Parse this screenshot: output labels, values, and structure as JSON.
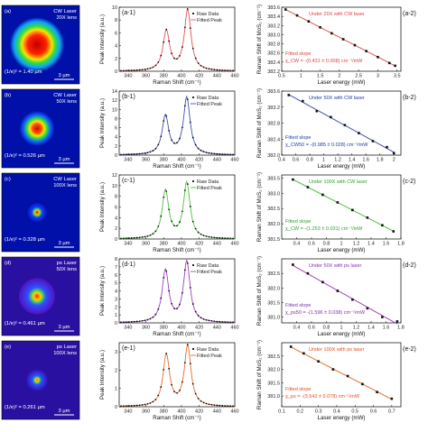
{
  "figure": {
    "rows": [
      {
        "image": {
          "label": "(a)",
          "laser_line1": "CW Laser",
          "laser_line2": "20X lens",
          "diameter_text": "(1/e)² = 1.40 µm",
          "scalebar": "3 µm",
          "spot": "large",
          "palette": "jet"
        },
        "spectrum": {
          "label": "(a-1)",
          "type": "line",
          "xlabel": "Raman Shift (cm⁻¹)",
          "ylabel": "Peak Intensity (a.u.)",
          "xlim": [
            330,
            460
          ],
          "ylim": [
            0,
            10
          ],
          "xticks": [
            340,
            360,
            380,
            400,
            420,
            440,
            460
          ],
          "yticks": [
            0,
            2,
            4,
            6,
            8,
            10
          ],
          "legend": [
            "Raw Data",
            "Fitted Peak"
          ],
          "fit_color": "#e05555",
          "peaks": [
            {
              "center": 383,
              "height": 6.2,
              "width": 4.5
            },
            {
              "center": 407,
              "height": 9.5,
              "width": 4.5
            }
          ]
        },
        "shift": {
          "label": "(a-2)",
          "type": "scatter",
          "annotation": "Under 20X with CW laser",
          "fit_title": "Fitted slope",
          "fit_value": "χ_CW = -(0.431 ± 0.008) cm⁻¹/mW",
          "xlabel": "",
          "ylabel": "",
          "xlim": [
            0.5,
            3.6
          ],
          "ylim": [
            382.2,
            383.6
          ],
          "xticks": [
            0.5,
            1.0,
            1.5,
            2.0,
            2.5,
            3.0,
            3.5
          ],
          "yticks": [
            382.2,
            382.4,
            382.6,
            382.8,
            383.0,
            383.2,
            383.4,
            383.6
          ],
          "line_color": "#e05555",
          "text_color": "#e04040",
          "points_x": [
            0.6,
            0.9,
            1.2,
            1.5,
            1.8,
            2.1,
            2.4,
            2.7,
            3.0,
            3.3,
            3.45
          ],
          "points_y": [
            383.55,
            383.42,
            383.29,
            383.16,
            383.03,
            382.9,
            382.77,
            382.64,
            382.51,
            382.38,
            382.32
          ]
        }
      },
      {
        "image": {
          "label": "(b)",
          "laser_line1": "CW Laser",
          "laser_line2": "50X lens",
          "diameter_text": "(1/e)² = 0.526 µm",
          "scalebar": "3 µm",
          "spot": "medium",
          "palette": "jet"
        },
        "spectrum": {
          "label": "(b-1)",
          "type": "line",
          "xlabel": "",
          "ylabel": "Peak Intensity (a.u.)",
          "xlim": [
            330,
            460
          ],
          "ylim": [
            0,
            14
          ],
          "xticks": [
            340,
            360,
            380,
            400,
            420,
            440,
            460
          ],
          "yticks": [
            0,
            2,
            4,
            6,
            8,
            10,
            12,
            14
          ],
          "legend": [
            "Raw Data",
            "Fitted Peak"
          ],
          "fit_color": "#4050b0",
          "peaks": [
            {
              "center": 382,
              "height": 8.5,
              "width": 4.5
            },
            {
              "center": 406,
              "height": 12.5,
              "width": 4.5
            }
          ]
        },
        "shift": {
          "label": "(b-2)",
          "type": "scatter",
          "annotation": "Under 50X with CW laser",
          "fit_title": "Fitted slope",
          "fit_value": "χ_CW50 = -(0.985 ± 0.028) cm⁻¹/mW",
          "xlabel": "",
          "ylabel": "",
          "xlim": [
            0.4,
            2.1
          ],
          "ylim": [
            382.0,
            383.6
          ],
          "xticks": [
            0.4,
            0.6,
            0.8,
            1.0,
            1.2,
            1.4,
            1.6,
            1.8,
            2.0
          ],
          "yticks": [
            382.0,
            382.4,
            382.8,
            383.2,
            383.6
          ],
          "line_color": "#4050b0",
          "text_color": "#2040a0",
          "points_x": [
            0.5,
            0.7,
            0.9,
            1.1,
            1.3,
            1.5,
            1.7,
            1.9,
            2.0
          ],
          "points_y": [
            383.5,
            383.35,
            383.1,
            382.95,
            382.75,
            382.55,
            382.35,
            382.2,
            382.05
          ]
        }
      },
      {
        "image": {
          "label": "(c)",
          "laser_line1": "CW Laser",
          "laser_line2": "100X lens",
          "diameter_text": "(1/e)² = 0.328 µm",
          "scalebar": "3 µm",
          "spot": "small",
          "palette": "jet"
        },
        "spectrum": {
          "label": "(c-1)",
          "type": "line",
          "xlabel": "",
          "ylabel": "Peak Intensity (a.u.)",
          "xlim": [
            330,
            460
          ],
          "ylim": [
            0,
            12
          ],
          "xticks": [
            340,
            360,
            380,
            400,
            420,
            440,
            460
          ],
          "yticks": [
            0,
            2,
            4,
            6,
            8,
            10,
            12
          ],
          "legend": [
            "Raw Data",
            "Fitted Peak"
          ],
          "fit_color": "#50c040",
          "peaks": [
            {
              "center": 382,
              "height": 9,
              "width": 4.5
            },
            {
              "center": 406,
              "height": 10.5,
              "width": 4.5
            }
          ]
        },
        "shift": {
          "label": "(c-2)",
          "type": "scatter",
          "annotation": "Under 100X with CW laser",
          "fit_title": "Fitted slope",
          "fit_value": "χ_CW = -(1.253 ± 0.031) cm⁻¹/mW",
          "xlabel": "",
          "ylabel": "",
          "xlim": [
            0.2,
            1.8
          ],
          "ylim": [
            381.5,
            383.6
          ],
          "xticks": [
            0.4,
            0.6,
            0.8,
            1.0,
            1.2,
            1.4,
            1.6,
            1.8
          ],
          "yticks": [
            381.5,
            382.0,
            382.5,
            383.0,
            383.5
          ],
          "line_color": "#50c040",
          "text_color": "#30a030",
          "points_x": [
            0.35,
            0.55,
            0.75,
            0.95,
            1.15,
            1.35,
            1.55,
            1.7
          ],
          "points_y": [
            383.45,
            383.2,
            382.95,
            382.7,
            382.45,
            382.2,
            381.95,
            381.75
          ]
        }
      },
      {
        "image": {
          "label": "(d)",
          "laser_line1": "ps Laser",
          "laser_line2": "50X lens",
          "diameter_text": "(1/e)² = 0.461 µm",
          "scalebar": "3 µm",
          "spot": "medium",
          "palette": "purple"
        },
        "spectrum": {
          "label": "(d-1)",
          "type": "line",
          "xlabel": "",
          "ylabel": "Peak Intensity (a.u.)",
          "xlim": [
            330,
            460
          ],
          "ylim": [
            0,
            8
          ],
          "xticks": [
            340,
            360,
            380,
            400,
            420,
            440,
            460
          ],
          "yticks": [
            0,
            1,
            2,
            3,
            4,
            5,
            6,
            7,
            8
          ],
          "legend": [
            "Raw Data",
            "Fitted Peak"
          ],
          "fit_color": "#a040c0",
          "peaks": [
            {
              "center": 382,
              "height": 6.5,
              "width": 4.5
            },
            {
              "center": 406,
              "height": 7.6,
              "width": 4.5
            }
          ]
        },
        "shift": {
          "label": "(d-2)",
          "type": "scatter",
          "annotation": "Under 50X with ps laser",
          "fit_title": "Fitted slope",
          "fit_value": "χ_ps50 = -(1.596 ± 0.038) cm⁻¹/mW",
          "xlabel": "",
          "ylabel": "",
          "xlim": [
            0.2,
            1.8
          ],
          "ylim": [
            380.8,
            383.0
          ],
          "xticks": [
            0.4,
            0.6,
            0.8,
            1.0,
            1.2,
            1.4,
            1.6,
            1.8
          ],
          "yticks": [
            381.0,
            381.5,
            382.0,
            382.5
          ],
          "line_color": "#a040c0",
          "text_color": "#8030b0",
          "points_x": [
            0.35,
            0.55,
            0.75,
            0.95,
            1.15,
            1.35,
            1.55,
            1.75
          ],
          "points_y": [
            382.8,
            382.5,
            382.2,
            381.9,
            381.6,
            381.3,
            381.0,
            380.85
          ]
        }
      },
      {
        "image": {
          "label": "(e)",
          "laser_line1": "ps Laser",
          "laser_line2": "100X lens",
          "diameter_text": "(1/e)² = 0.261 µm",
          "scalebar": "3 µm",
          "spot": "small",
          "palette": "purple"
        },
        "spectrum": {
          "label": "(e-1)",
          "type": "line",
          "xlabel": "Raman Shift (cm⁻¹)",
          "ylabel": "Peak Intensity (a.u.)",
          "xlim": [
            330,
            460
          ],
          "ylim": [
            0,
            3.5
          ],
          "xticks": [
            340,
            360,
            380,
            400,
            420,
            440,
            460
          ],
          "yticks": [
            0,
            1,
            2,
            3
          ],
          "legend": [
            "Raw Data",
            "Fitted Peak"
          ],
          "fit_color": "#e07030",
          "peaks": [
            {
              "center": 383,
              "height": 2.8,
              "width": 4.5
            },
            {
              "center": 407,
              "height": 3.3,
              "width": 4.5
            }
          ]
        },
        "shift": {
          "label": "(e-2)",
          "type": "scatter",
          "annotation": "Under 100X with ps laser",
          "fit_title": "Fitted slope",
          "fit_value": "χ_ps = -(3.542 ± 0.078) cm⁻¹/mW",
          "xlabel": "Laser energy (mW)",
          "ylabel": "",
          "xlim": [
            0.1,
            0.75
          ],
          "ylim": [
            380.6,
            383.0
          ],
          "xticks": [
            0.1,
            0.2,
            0.3,
            0.4,
            0.5,
            0.6,
            0.7
          ],
          "yticks": [
            381.0,
            381.5,
            382.0,
            382.5
          ],
          "line_color": "#e07030",
          "text_color": "#e05020",
          "points_x": [
            0.15,
            0.22,
            0.3,
            0.38,
            0.46,
            0.54,
            0.62,
            0.7
          ],
          "points_y": [
            382.85,
            382.6,
            382.3,
            382.0,
            381.75,
            381.45,
            381.15,
            380.9
          ]
        }
      }
    ],
    "shared": {
      "x2label": "Laser energy (mW)",
      "y2label": "Raman Shift of MoS₂ (cm⁻¹)"
    }
  },
  "chart_data": [
    {
      "type": "line",
      "title": "(a-1)",
      "xlabel": "Raman Shift (cm⁻¹)",
      "ylabel": "Peak Intensity (a.u.)",
      "xlim": [
        330,
        460
      ],
      "ylim": [
        0,
        10
      ],
      "series": [
        {
          "name": "Raw Data"
        },
        {
          "name": "Fitted Peak"
        }
      ],
      "peaks_cm1": [
        383,
        407
      ],
      "peak_heights": [
        6.2,
        9.5
      ]
    },
    {
      "type": "scatter",
      "title": "(a-2)",
      "ylabel": "Raman Shift of MoS₂ (cm⁻¹)",
      "xlabel": "Laser energy (mW)",
      "slope": "-(0.431 ± 0.008) cm⁻¹/mW",
      "x": [
        0.6,
        0.9,
        1.2,
        1.5,
        1.8,
        2.1,
        2.4,
        2.7,
        3.0,
        3.3,
        3.45
      ],
      "y": [
        383.55,
        383.42,
        383.29,
        383.16,
        383.03,
        382.9,
        382.77,
        382.64,
        382.51,
        382.38,
        382.32
      ]
    },
    {
      "type": "line",
      "title": "(b-1)",
      "peaks_cm1": [
        382,
        406
      ],
      "peak_heights": [
        8.5,
        12.5
      ]
    },
    {
      "type": "scatter",
      "title": "(b-2)",
      "slope": "-(0.985 ± 0.028) cm⁻¹/mW",
      "x": [
        0.5,
        0.7,
        0.9,
        1.1,
        1.3,
        1.5,
        1.7,
        1.9,
        2.0
      ],
      "y": [
        383.5,
        383.35,
        383.1,
        382.95,
        382.75,
        382.55,
        382.35,
        382.2,
        382.05
      ]
    },
    {
      "type": "line",
      "title": "(c-1)",
      "peaks_cm1": [
        382,
        406
      ],
      "peak_heights": [
        9,
        10.5
      ]
    },
    {
      "type": "scatter",
      "title": "(c-2)",
      "slope": "-(1.253 ± 0.031) cm⁻¹/mW",
      "x": [
        0.35,
        0.55,
        0.75,
        0.95,
        1.15,
        1.35,
        1.55,
        1.7
      ],
      "y": [
        383.45,
        383.2,
        382.95,
        382.7,
        382.45,
        382.2,
        381.95,
        381.75
      ]
    },
    {
      "type": "line",
      "title": "(d-1)",
      "peaks_cm1": [
        382,
        406
      ],
      "peak_heights": [
        6.5,
        7.6
      ]
    },
    {
      "type": "scatter",
      "title": "(d-2)",
      "slope": "-(1.596 ± 0.038) cm⁻¹/mW",
      "x": [
        0.35,
        0.55,
        0.75,
        0.95,
        1.15,
        1.35,
        1.55,
        1.75
      ],
      "y": [
        382.8,
        382.5,
        382.2,
        381.9,
        381.6,
        381.3,
        381.0,
        380.85
      ]
    },
    {
      "type": "line",
      "title": "(e-1)",
      "peaks_cm1": [
        383,
        407
      ],
      "peak_heights": [
        2.8,
        3.3
      ]
    },
    {
      "type": "scatter",
      "title": "(e-2)",
      "slope": "-(3.542 ± 0.078) cm⁻¹/mW",
      "x": [
        0.15,
        0.22,
        0.3,
        0.38,
        0.46,
        0.54,
        0.62,
        0.7
      ],
      "y": [
        382.85,
        382.6,
        382.3,
        382.0,
        381.75,
        381.45,
        381.15,
        380.9
      ]
    }
  ]
}
